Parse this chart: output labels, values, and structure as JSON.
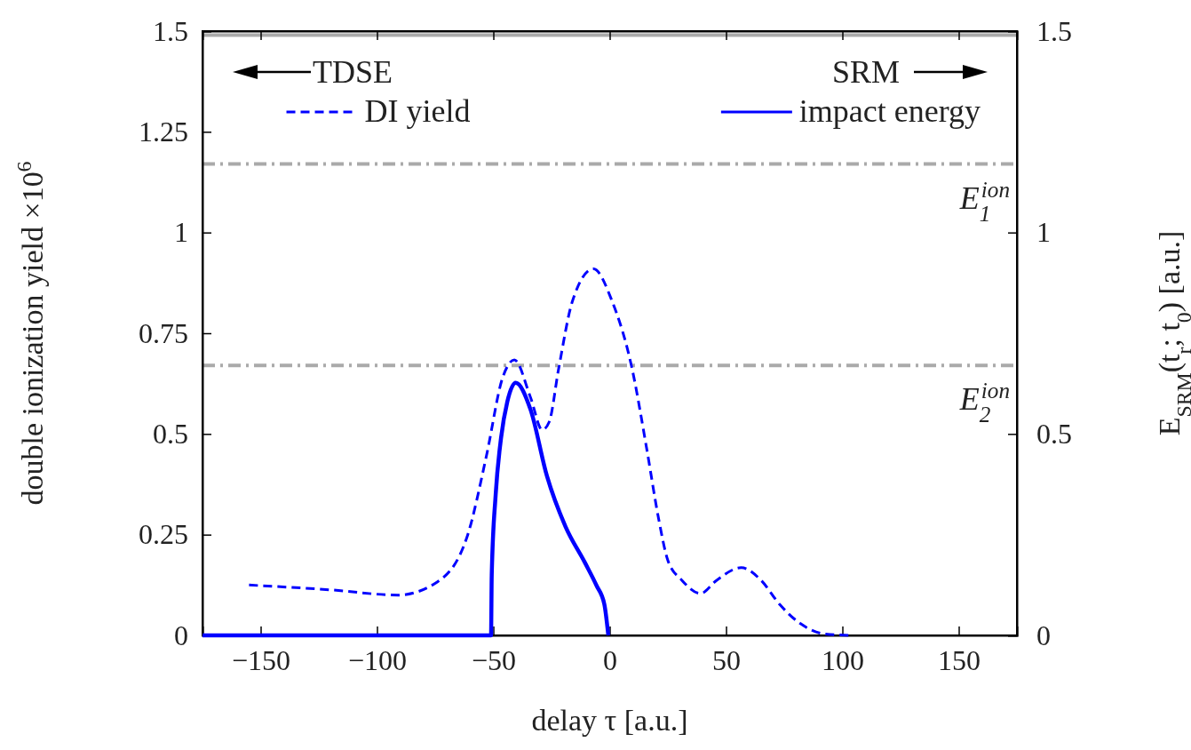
{
  "chart_data": {
    "type": "line",
    "xlabel": "delay τ [a.u.]",
    "ylabel": "double ionization yield ×10$^{6}$",
    "y2label": "E$_{SRM}$(t$_{r}$; t$_{0}$) [a.u.]",
    "annotations": [
      "TDSE",
      "SRM"
    ],
    "xlim": [
      -175,
      175
    ],
    "xticks": [
      {
        "value": -150,
        "label": "−150"
      },
      {
        "value": -100,
        "label": "−100"
      },
      {
        "value": -50,
        "label": "−50"
      },
      0,
      50,
      100,
      150
    ],
    "ylim": [
      0,
      1.5
    ],
    "yticks": [
      0,
      0.25,
      0.5,
      0.75,
      1,
      1.25,
      1.5
    ],
    "y2lim": [
      0,
      1.5
    ],
    "y2ticks": [
      0,
      0.5,
      1,
      1.5
    ],
    "legend": "top",
    "grid": false,
    "marker": "none",
    "ref_lines": [
      {
        "axis": "y",
        "value": 1.17,
        "label": "E$_{1}$$^{ion}$",
        "color": "#aaaaaa",
        "line_style": "dashdot"
      },
      {
        "axis": "y",
        "value": 0.67,
        "label": "E$_{2}$$^{ion}$",
        "color": "#aaaaaa",
        "line_style": "dashdot"
      },
      {
        "axis": "y",
        "value": 1.49,
        "color": "#aaaaaa",
        "line_style": "solid"
      }
    ],
    "series": [
      {
        "name": "DI yield",
        "color": "#0000ff",
        "line_style": "dashed",
        "x": [
          -155,
          -120,
          -91,
          -74,
          -61,
          -53,
          -46,
          -41,
          -34,
          -29,
          -26,
          -22,
          -16,
          -7,
          1,
          9.5,
          16,
          21,
          25,
          31,
          39,
          46,
          56.5,
          65,
          73,
          82,
          92,
          104
        ],
        "values": [
          0.125,
          0.113,
          0.1,
          0.133,
          0.25,
          0.445,
          0.64,
          0.684,
          0.59,
          0.51,
          0.53,
          0.66,
          0.83,
          0.91,
          0.83,
          0.665,
          0.46,
          0.29,
          0.186,
          0.137,
          0.104,
          0.137,
          0.168,
          0.137,
          0.077,
          0.029,
          0.004,
          0
        ]
      },
      {
        "name": "impact energy",
        "color": "#0000ff",
        "line_style": "solid",
        "x": [
          -175,
          -51,
          -50.7,
          -49,
          -46.7,
          -44,
          -40.4,
          -34,
          -27,
          -19,
          -10.6,
          -5.7,
          -2.3,
          -0.6
        ],
        "values": [
          0,
          0,
          0.15,
          0.35,
          0.49,
          0.58,
          0.627,
          0.56,
          0.396,
          0.27,
          0.18,
          0.124,
          0.077,
          0
        ]
      }
    ]
  }
}
